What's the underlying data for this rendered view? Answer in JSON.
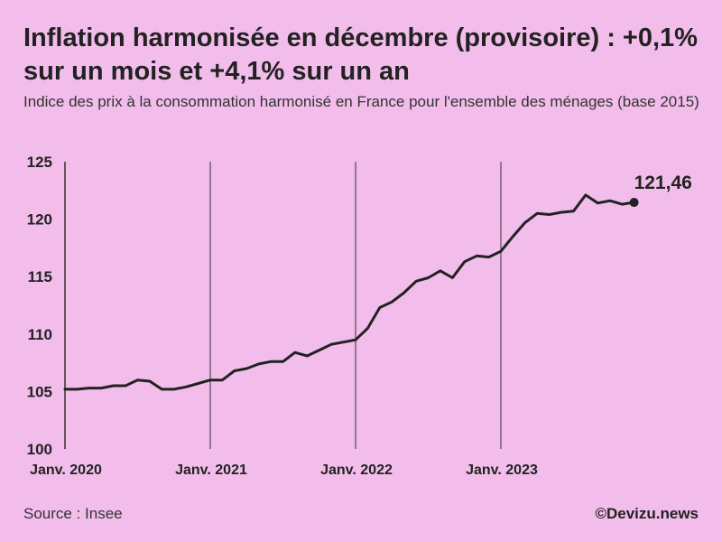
{
  "header": {
    "title": "Inflation harmonisée en décembre (provisoire) : +0,1% sur un mois et +4,1% sur un an",
    "subtitle": "Indice des prix à la consommation harmonisé en France pour l'ensemble des ménages (base 2015)"
  },
  "footer": {
    "source": "Source : Insee",
    "credit": "©Devizu.news"
  },
  "colors": {
    "background": "#f2bdea",
    "line": "#222222",
    "gridline": "#333333"
  },
  "chart_data": {
    "type": "line",
    "title": "Inflation harmonisée en décembre (provisoire) : +0,1% sur un mois et +4,1% sur un an",
    "subtitle": "Indice des prix à la consommation harmonisé en France pour l'ensemble des ménages (base 2015)",
    "xlabel": "",
    "ylabel": "",
    "ylim": [
      100,
      125
    ],
    "yticks": [
      100,
      105,
      110,
      115,
      120,
      125
    ],
    "x_start": "2020-01",
    "x_end": "2023-12",
    "x_tick_labels": [
      {
        "label": "Janv. 2020",
        "month_index": 0
      },
      {
        "label": "Janv. 2021",
        "month_index": 12
      },
      {
        "label": "Janv. 2022",
        "month_index": 24
      },
      {
        "label": "Janv. 2023",
        "month_index": 36
      }
    ],
    "vertical_gridlines_at_month_index": [
      0,
      12,
      24,
      36
    ],
    "series": [
      {
        "name": "IPCH France (base 2015)",
        "values": [
          105.2,
          105.2,
          105.3,
          105.3,
          105.5,
          105.5,
          106.0,
          105.9,
          105.2,
          105.2,
          105.4,
          105.7,
          106.0,
          106.0,
          106.8,
          107.0,
          107.4,
          107.6,
          107.6,
          108.4,
          108.1,
          108.6,
          109.1,
          109.3,
          109.5,
          110.5,
          112.3,
          112.8,
          113.6,
          114.6,
          114.9,
          115.5,
          114.9,
          116.3,
          116.8,
          116.7,
          117.2,
          118.5,
          119.7,
          120.5,
          120.4,
          120.6,
          120.7,
          122.1,
          121.4,
          121.6,
          121.3,
          121.46
        ],
        "last_value_label": "121,46"
      }
    ]
  }
}
